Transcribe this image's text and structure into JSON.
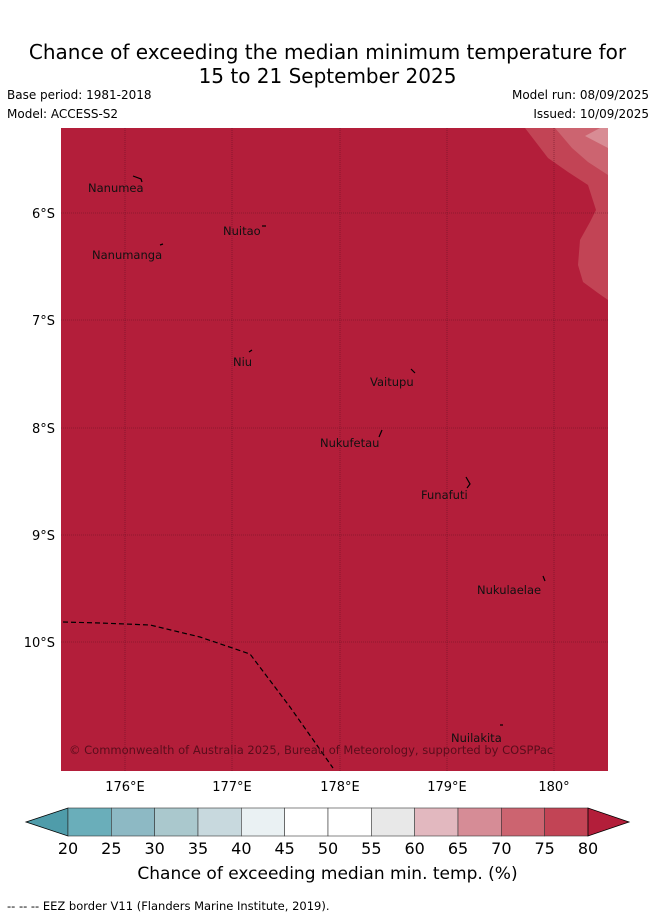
{
  "header": {
    "title_line1": "Chance of exceeding the median minimum temperature for",
    "title_line2": "15 to 21 September 2025",
    "base_period": "Base period: 1981-2018",
    "model": "Model: ACCESS-S2",
    "model_run": "Model run: 08/09/2025",
    "issued": "Issued: 10/09/2025"
  },
  "map": {
    "lat_labels": [
      "6°S",
      "7°S",
      "8°S",
      "9°S",
      "10°S"
    ],
    "lon_labels": [
      "176°E",
      "177°E",
      "178°E",
      "179°E",
      "180°"
    ],
    "places": [
      {
        "name": "Nanumea"
      },
      {
        "name": "Nuitao"
      },
      {
        "name": "Nanumanga"
      },
      {
        "name": "Niu"
      },
      {
        "name": "Vaitupu"
      },
      {
        "name": "Nukufetau"
      },
      {
        "name": "Funafuti"
      },
      {
        "name": "Nukulaelae"
      },
      {
        "name": "Nuilakita"
      }
    ],
    "copyright": "© Commonwealth of Australia 2025, Bureau of Meteorology, supported by COSPPac",
    "colors": {
      "dominant": "#b31e3a",
      "band_75_80": "#c24455",
      "band_70_75": "#cc6470",
      "band_65_70": "#d88c94"
    }
  },
  "colorbar": {
    "ticks": [
      "20",
      "25",
      "30",
      "35",
      "40",
      "45",
      "50",
      "55",
      "60",
      "65",
      "70",
      "75",
      "80"
    ],
    "colors": [
      "#4f9caa",
      "#6aaeba",
      "#8db9c4",
      "#aac8cd",
      "#c8d9de",
      "#eaf1f3",
      "#ffffff",
      "#ffffff",
      "#e8e8e8",
      "#e2b8bf",
      "#d68c96",
      "#cc6470",
      "#c24455",
      "#b31e3a"
    ],
    "label": "Chance of exceeding median min. temp. (%)"
  },
  "legend": {
    "text": "--  --  -- EEZ border V11 (Flanders Marine Institute, 2019)."
  }
}
